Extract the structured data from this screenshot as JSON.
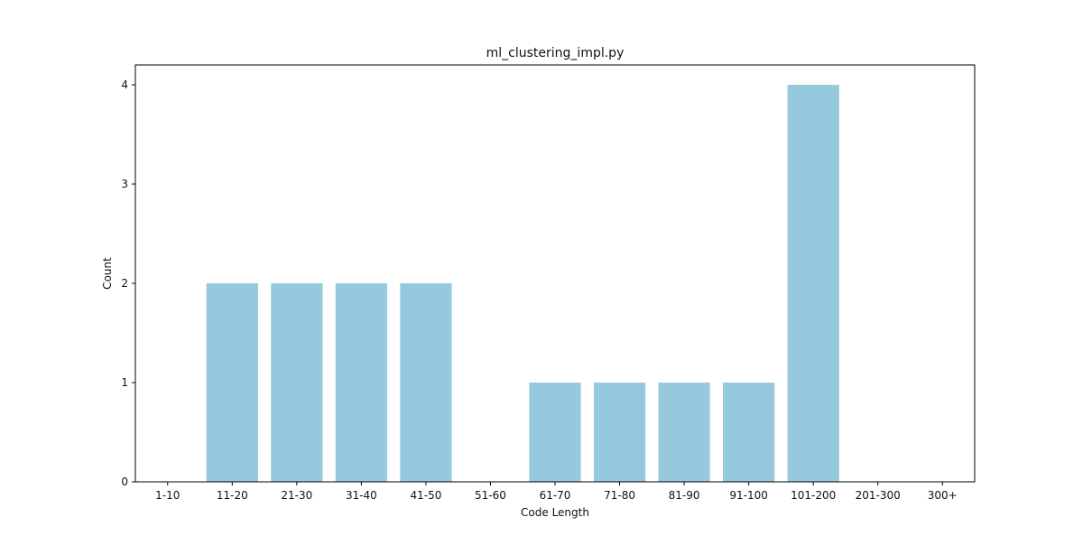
{
  "chart_data": {
    "type": "bar",
    "title": "ml_clustering_impl.py",
    "xlabel": "Code Length",
    "ylabel": "Count",
    "categories": [
      "1-10",
      "11-20",
      "21-30",
      "31-40",
      "41-50",
      "51-60",
      "61-70",
      "71-80",
      "81-90",
      "91-100",
      "101-200",
      "201-300",
      "300+"
    ],
    "values": [
      0,
      2,
      2,
      2,
      2,
      0,
      1,
      1,
      1,
      1,
      4,
      0,
      0
    ],
    "ylim": [
      0,
      4.2
    ],
    "yticks": [
      "0",
      "1",
      "2",
      "3",
      "4"
    ],
    "grid": false,
    "bar_color": "#96c9dd"
  }
}
